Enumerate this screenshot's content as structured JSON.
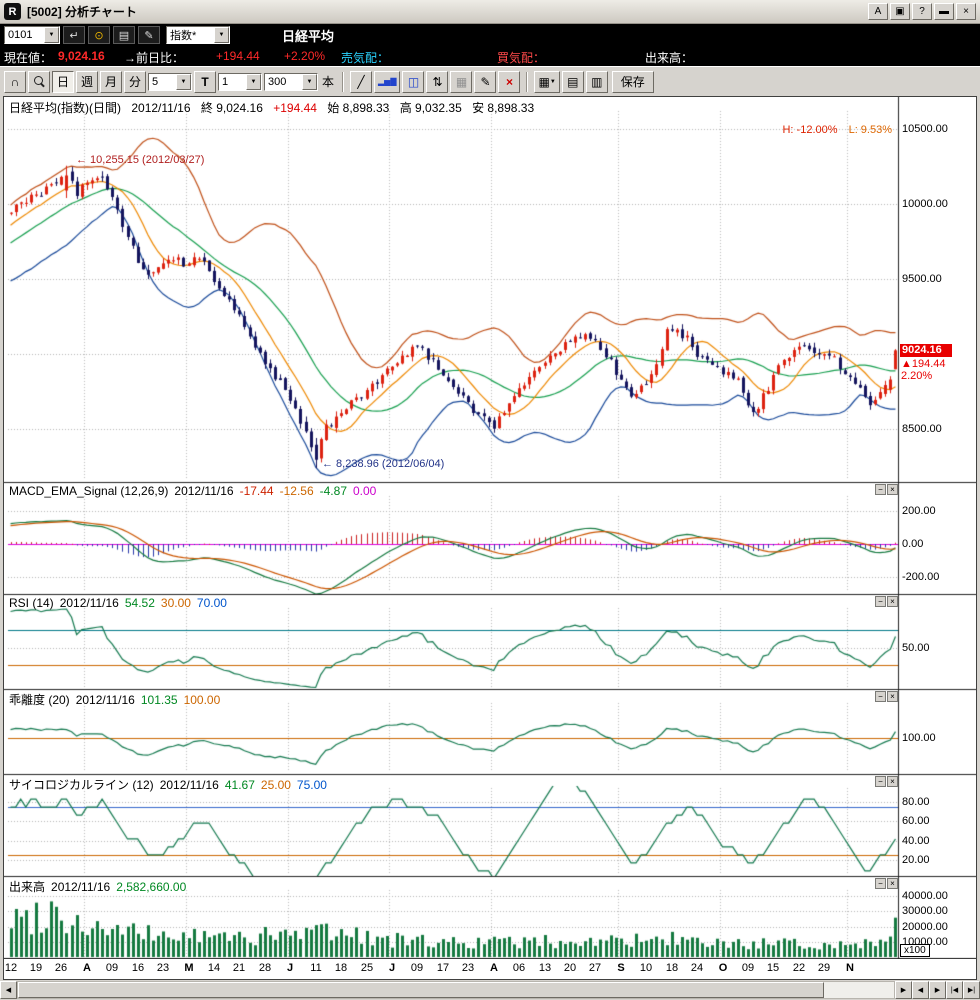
{
  "window": {
    "title": "[5002] 分析チャート",
    "a_label": "A",
    "help_label": "?"
  },
  "icons": {
    "chevron_down": "▼",
    "minimize": "−",
    "close": "×",
    "window": "▣",
    "min_win": "▬",
    "enter": "↵",
    "binoculars": "⊙",
    "memo": "▤",
    "pencil": "✎",
    "headset": "∩",
    "line_tool": "╱",
    "bars": "▂▅▇",
    "candle": "◫",
    "updown": "⇅",
    "grid": "▦",
    "erase": "×",
    "copy1": "▤",
    "copy2": "▥",
    "scroll_left": "◀",
    "scroll_right": "▶",
    "jump_left": "|◀",
    "jump_right": "▶|"
  },
  "toolbar1": {
    "code": "0101",
    "category": "指数*",
    "symbol": "日経平均"
  },
  "infobar": {
    "current_label": "現在値：",
    "current_value": "9,024.16",
    "change_label": "→前日比：",
    "change_value": "+194.44",
    "change_pct": "+2.20%",
    "ask_label": "売気配：",
    "bid_label": "買気配：",
    "volume_label": "出来高："
  },
  "toolbar2": {
    "period_day": "日",
    "period_week": "週",
    "period_month": "月",
    "period_minute": "分",
    "minute_value": "5",
    "tick_label": "T",
    "tick_value": "1",
    "bars_value": "300",
    "bars_suffix": "本",
    "save_label": "保存"
  },
  "main": {
    "instrument": "日経平均(指数)(日間)",
    "date": "2012/11/16",
    "close": "終 9,024.16",
    "change": "+194.44",
    "open": "始 8,898.33",
    "high": "高 9,032.35",
    "low": "安 8,898.33",
    "h_readout": "H: -12.00%",
    "l_readout": "L: 9.53%",
    "peak_annotation": "← 10,255.15 (2012/03/27)",
    "trough_annotation": "← 8,238.96 (2012/06/04)",
    "badge": {
      "price": "9024.16",
      "change": "▲194.44",
      "pct": "2.20%"
    }
  },
  "panels": {
    "macd": {
      "label": "MACD_EMA_Signal (12,26,9)",
      "date": "2012/11/16",
      "values": [
        {
          "t": "-17.44",
          "c": "#cc2200"
        },
        {
          "t": "-12.56",
          "c": "#cc6600"
        },
        {
          "t": "-4.87",
          "c": "#008822"
        },
        {
          "t": "0.00",
          "c": "#cc00cc"
        }
      ]
    },
    "rsi": {
      "label": "RSI (14)",
      "date": "2012/11/16",
      "values": [
        {
          "t": "54.52",
          "c": "#008822"
        },
        {
          "t": "30.00",
          "c": "#cc6600"
        },
        {
          "t": "70.00",
          "c": "#0055cc"
        }
      ]
    },
    "kairi": {
      "label": "乖離度 (20)",
      "date": "2012/11/16",
      "values": [
        {
          "t": "101.35",
          "c": "#008822"
        },
        {
          "t": "100.00",
          "c": "#cc6600"
        }
      ]
    },
    "psych": {
      "label": "サイコロジカルライン (12)",
      "date": "2012/11/16",
      "values": [
        {
          "t": "41.67",
          "c": "#008822"
        },
        {
          "t": "25.00",
          "c": "#cc6600"
        },
        {
          "t": "75.00",
          "c": "#0055cc"
        }
      ]
    },
    "vol": {
      "label": "出来高",
      "date": "2012/11/16",
      "values": [
        {
          "t": "2,582,660.00",
          "c": "#008822"
        }
      ],
      "unit": "x100"
    }
  },
  "chart_data": {
    "type": "candlestick",
    "title": "日経平均(指数)(日間)",
    "n_days": 175,
    "x_labels": [
      {
        "t": "12",
        "d": 0
      },
      {
        "t": "19",
        "d": 5
      },
      {
        "t": "26",
        "d": 10
      },
      {
        "t": "A",
        "d": 15,
        "m": true
      },
      {
        "t": "09",
        "d": 20
      },
      {
        "t": "16",
        "d": 25
      },
      {
        "t": "23",
        "d": 30
      },
      {
        "t": "M",
        "d": 35,
        "m": true
      },
      {
        "t": "14",
        "d": 40
      },
      {
        "t": "21",
        "d": 45
      },
      {
        "t": "28",
        "d": 50
      },
      {
        "t": "J",
        "d": 55,
        "m": true
      },
      {
        "t": "11",
        "d": 60
      },
      {
        "t": "18",
        "d": 65
      },
      {
        "t": "25",
        "d": 70
      },
      {
        "t": "J",
        "d": 75,
        "m": true
      },
      {
        "t": "09",
        "d": 80
      },
      {
        "t": "17",
        "d": 85
      },
      {
        "t": "23",
        "d": 90
      },
      {
        "t": "A",
        "d": 95,
        "m": true
      },
      {
        "t": "06",
        "d": 100
      },
      {
        "t": "13",
        "d": 105
      },
      {
        "t": "20",
        "d": 110
      },
      {
        "t": "27",
        "d": 115
      },
      {
        "t": "S",
        "d": 120,
        "m": true
      },
      {
        "t": "10",
        "d": 125
      },
      {
        "t": "18",
        "d": 130
      },
      {
        "t": "24",
        "d": 135
      },
      {
        "t": "O",
        "d": 140,
        "m": true
      },
      {
        "t": "09",
        "d": 145
      },
      {
        "t": "15",
        "d": 150
      },
      {
        "t": "22",
        "d": 155
      },
      {
        "t": "29",
        "d": 160
      },
      {
        "t": "N",
        "d": 165,
        "m": true
      }
    ],
    "month_gridline_days": [
      15,
      35,
      55,
      75,
      95,
      120,
      140,
      165
    ],
    "price_anchors": [
      [
        0,
        9950
      ],
      [
        3,
        10020
      ],
      [
        6,
        10070
      ],
      [
        9,
        10140
      ],
      [
        11,
        10230
      ],
      [
        13,
        10080
      ],
      [
        16,
        10150
      ],
      [
        18,
        10180
      ],
      [
        20,
        10060
      ],
      [
        22,
        9870
      ],
      [
        25,
        9620
      ],
      [
        28,
        9520
      ],
      [
        31,
        9650
      ],
      [
        34,
        9610
      ],
      [
        37,
        9660
      ],
      [
        41,
        9440
      ],
      [
        45,
        9240
      ],
      [
        49,
        9010
      ],
      [
        53,
        8800
      ],
      [
        57,
        8560
      ],
      [
        60,
        8310
      ],
      [
        62,
        8520
      ],
      [
        64,
        8570
      ],
      [
        67,
        8680
      ],
      [
        70,
        8760
      ],
      [
        73,
        8860
      ],
      [
        77,
        8990
      ],
      [
        80,
        9060
      ],
      [
        83,
        8950
      ],
      [
        87,
        8790
      ],
      [
        91,
        8630
      ],
      [
        95,
        8500
      ],
      [
        98,
        8680
      ],
      [
        102,
        8850
      ],
      [
        106,
        8970
      ],
      [
        110,
        9100
      ],
      [
        114,
        9120
      ],
      [
        117,
        9000
      ],
      [
        121,
        8760
      ],
      [
        123,
        8720
      ],
      [
        127,
        8930
      ],
      [
        129,
        9180
      ],
      [
        131,
        9150
      ],
      [
        133,
        9100
      ],
      [
        136,
        8960
      ],
      [
        140,
        8890
      ],
      [
        143,
        8820
      ],
      [
        146,
        8590
      ],
      [
        149,
        8780
      ],
      [
        152,
        8970
      ],
      [
        156,
        9050
      ],
      [
        159,
        9000
      ],
      [
        162,
        8970
      ],
      [
        166,
        8790
      ],
      [
        169,
        8670
      ],
      [
        171,
        8740
      ],
      [
        173,
        8830
      ],
      [
        174,
        9024
      ]
    ],
    "volume_anchors": [
      [
        0,
        24000
      ],
      [
        8,
        30000
      ],
      [
        15,
        20000
      ],
      [
        25,
        15000
      ],
      [
        40,
        13000
      ],
      [
        55,
        14000
      ],
      [
        62,
        18000
      ],
      [
        75,
        11000
      ],
      [
        90,
        9500
      ],
      [
        105,
        10000
      ],
      [
        120,
        11000
      ],
      [
        135,
        9000
      ],
      [
        150,
        8500
      ],
      [
        160,
        8000
      ],
      [
        170,
        9500
      ],
      [
        174,
        25826
      ]
    ],
    "last_day": {
      "open": 8898.33,
      "high": 9032.35,
      "low": 8898.33,
      "close": 9024.16,
      "prev_close": 8829.72
    },
    "peak": {
      "day": 11,
      "high": 10255.15
    },
    "trough": {
      "day": 60,
      "low": 8238.96
    },
    "indicators": {
      "bollinger": [
        20,
        2
      ],
      "ma_fast": 9,
      "macd": [
        12,
        26,
        9
      ],
      "rsi": 14,
      "kairi": 20,
      "psych": 12
    },
    "axes": {
      "main": {
        "range": [
          8160,
          10620
        ],
        "gridlines": [
          10500,
          10000,
          9500,
          9000,
          8500
        ],
        "ticks": [
          [
            10500,
            "10500.00"
          ],
          [
            10000,
            "10000.00"
          ],
          [
            9500,
            "9500.00"
          ],
          [
            8500,
            "8500.00"
          ]
        ],
        "hlines": []
      },
      "macd": {
        "range": [
          -290,
          290
        ],
        "gridlines": [
          200,
          -200
        ],
        "ticks": [
          [
            200,
            "200.00"
          ],
          [
            0,
            "0.00"
          ],
          [
            -200,
            "-200.00"
          ]
        ],
        "hlines": [
          [
            0,
            "#dd00dd"
          ]
        ]
      },
      "rsi": {
        "range": [
          5,
          95
        ],
        "gridlines": [
          50
        ],
        "ticks": [
          [
            50,
            "50.00"
          ]
        ],
        "hlines": [
          [
            70,
            "#007788"
          ],
          [
            30,
            "#cc6600"
          ]
        ]
      },
      "kairi": {
        "range": [
          91,
          109
        ],
        "gridlines": [
          100
        ],
        "ticks": [
          [
            100,
            "100.00"
          ]
        ],
        "hlines": [
          [
            100,
            "#cc6600"
          ]
        ]
      },
      "psych": {
        "range": [
          5,
          95
        ],
        "gridlines": [
          80,
          60,
          40,
          20
        ],
        "ticks": [
          [
            80,
            "80.00"
          ],
          [
            60,
            "60.00"
          ],
          [
            40,
            "40.00"
          ],
          [
            20,
            "20.00"
          ]
        ],
        "hlines": [
          [
            75,
            "#3366cc"
          ],
          [
            25,
            "#cc6600"
          ]
        ]
      },
      "vol": {
        "range": [
          0,
          44000
        ],
        "gridlines": [
          40000,
          30000,
          20000,
          10000
        ],
        "ticks": [
          [
            40000,
            "40000.00"
          ],
          [
            30000,
            "30000.00"
          ],
          [
            20000,
            "20000.00"
          ],
          [
            10000,
            "10000.00"
          ]
        ],
        "hlines": []
      }
    },
    "colors": {
      "candle_up": "#dd2211",
      "candle_down": "#15155e",
      "bb_upper": "#c05018",
      "bb_lower": "#1a4a9a",
      "sma20": "#18a050",
      "sma9": "#ee8800",
      "macd_line": "#157a40",
      "macd_signal": "#cc5500",
      "hist_pos": "#cc2222",
      "hist_neg": "#2838aa",
      "osc_line": "#157a50",
      "volume_bar": "#157a40",
      "badge_bg": "#e80000",
      "annotation_peak": "#b02020",
      "annotation_trough": "#223388"
    }
  }
}
